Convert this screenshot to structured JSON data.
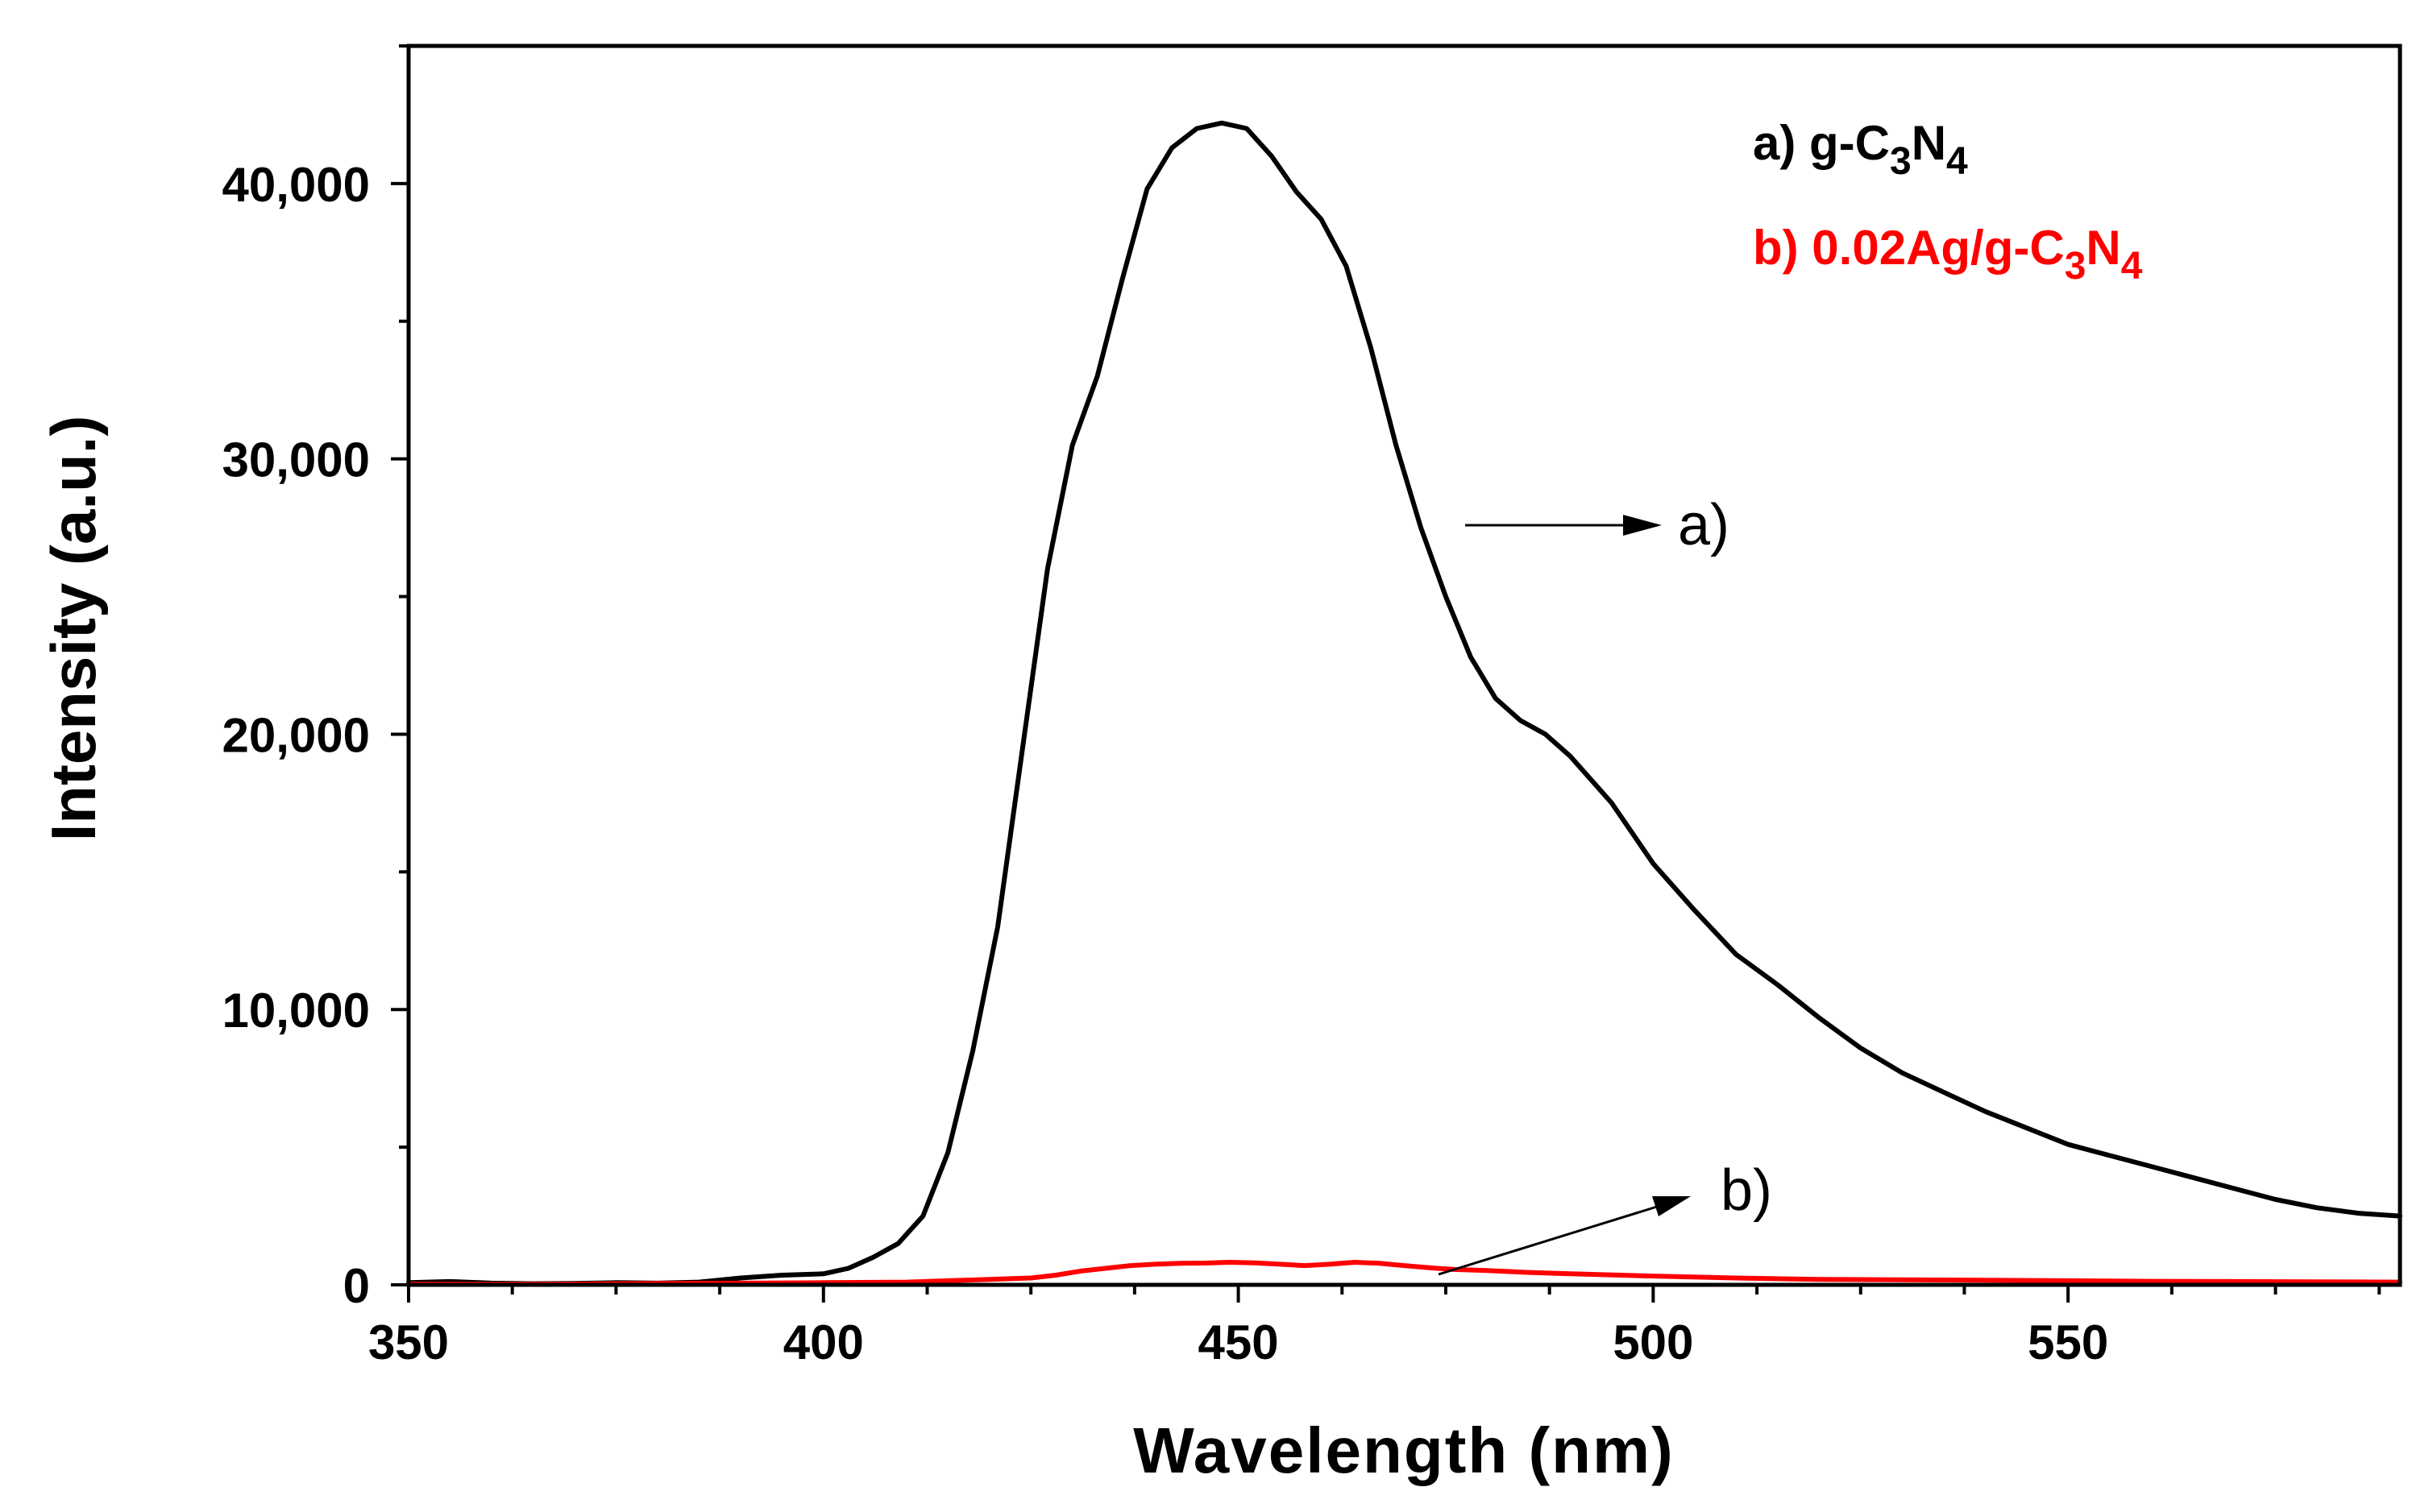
{
  "chart_data": {
    "type": "line",
    "title": "",
    "xlabel": "Wavelength (nm)",
    "ylabel": "Intensity (a.u.)",
    "xlim": [
      350,
      590
    ],
    "ylim": [
      0,
      45000
    ],
    "x_ticks": [
      350,
      400,
      450,
      500,
      550
    ],
    "x_tick_labels": [
      "350",
      "400",
      "450",
      "500",
      "550"
    ],
    "x_minor_step": 12.5,
    "y_ticks": [
      0,
      10000,
      20000,
      30000,
      40000
    ],
    "y_tick_labels": [
      "0",
      "10,000",
      "20,000",
      "30,000",
      "40,000"
    ],
    "y_minor_step": 5000,
    "grid": false,
    "legend": {
      "position": "top-right",
      "entries": [
        {
          "prefix": "a) g-C",
          "sub1": "3",
          "mid": "N",
          "sub2": "4",
          "color": "#000000"
        },
        {
          "prefix": "b) 0.02Ag/g-C",
          "sub1": "3",
          "mid": "N",
          "sub2": "4",
          "color": "#ff0000"
        }
      ]
    },
    "annotations": [
      {
        "text": "a)",
        "series": "a"
      },
      {
        "text": "b)",
        "series": "b"
      }
    ],
    "series": [
      {
        "name": "a) g-C3N4",
        "color": "#000000",
        "x": [
          350,
          355,
          360,
          365,
          370,
          375,
          380,
          385,
          390,
          395,
          400,
          403,
          406,
          409,
          412,
          415,
          418,
          421,
          424,
          427,
          430,
          433,
          436,
          439,
          442,
          445,
          448,
          451,
          454,
          457,
          460,
          463,
          466,
          469,
          472,
          475,
          478,
          481,
          484,
          487,
          490,
          495,
          500,
          505,
          510,
          515,
          520,
          525,
          530,
          535,
          540,
          545,
          550,
          555,
          560,
          565,
          570,
          575,
          580,
          585,
          590
        ],
        "y": [
          80,
          120,
          60,
          40,
          50,
          80,
          60,
          100,
          250,
          350,
          400,
          600,
          1000,
          1500,
          2500,
          4800,
          8500,
          13000,
          19500,
          26000,
          30500,
          33000,
          36500,
          39800,
          41300,
          42000,
          42200,
          42000,
          41000,
          39700,
          38700,
          37000,
          34000,
          30500,
          27500,
          25000,
          22800,
          21300,
          20500,
          20000,
          19200,
          17500,
          15300,
          13600,
          12000,
          10900,
          9700,
          8600,
          7700,
          7000,
          6300,
          5700,
          5100,
          4700,
          4300,
          3900,
          3500,
          3100,
          2800,
          2600,
          2500
        ]
      },
      {
        "name": "b) 0.02Ag/g-C3N4",
        "color": "#ff0000",
        "x": [
          350,
          360,
          370,
          380,
          390,
          400,
          410,
          415,
          420,
          425,
          428,
          431,
          434,
          437,
          440,
          443,
          446,
          449,
          452,
          455,
          458,
          461,
          464,
          467,
          470,
          473,
          476,
          480,
          485,
          490,
          500,
          510,
          520,
          530,
          540,
          550,
          560,
          570,
          580,
          590
        ],
        "y": [
          30,
          20,
          30,
          50,
          60,
          80,
          100,
          150,
          200,
          250,
          350,
          500,
          600,
          700,
          750,
          780,
          790,
          820,
          800,
          750,
          700,
          750,
          820,
          780,
          700,
          620,
          560,
          520,
          450,
          400,
          320,
          250,
          200,
          180,
          170,
          150,
          130,
          120,
          110,
          100
        ]
      }
    ]
  }
}
